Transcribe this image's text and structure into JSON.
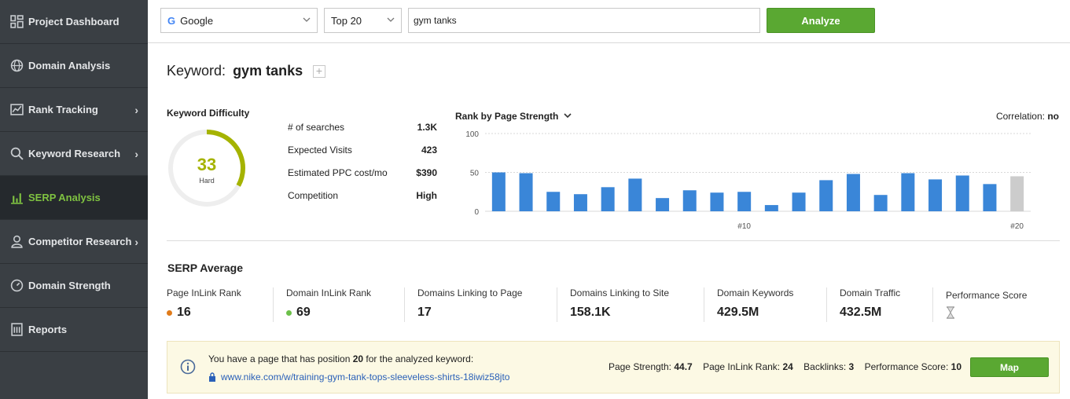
{
  "sidebar": {
    "items": [
      {
        "label": "Project Dashboard",
        "icon": "dashboard-icon"
      },
      {
        "label": "Domain Analysis",
        "icon": "globe-icon"
      },
      {
        "label": "Rank Tracking",
        "icon": "trend-icon"
      },
      {
        "label": "Keyword Research",
        "icon": "search-icon"
      },
      {
        "label": "SERP Analysis",
        "icon": "bar-chart-icon"
      },
      {
        "label": "Competitor Research",
        "icon": "user-icon"
      },
      {
        "label": "Domain Strength",
        "icon": "gauge-icon"
      },
      {
        "label": "Reports",
        "icon": "report-icon"
      }
    ],
    "active": "SERP Analysis"
  },
  "toolbar": {
    "engine": "Google",
    "depth": "Top 20",
    "query": "gym tanks",
    "analyze_label": "Analyze"
  },
  "keyword": {
    "prefix": "Keyword:",
    "value": "gym tanks",
    "add_symbol": "+"
  },
  "difficulty": {
    "label": "Keyword Difficulty",
    "score": "33",
    "score_value": 33,
    "level": "Hard",
    "color": "#a5b300"
  },
  "stats": [
    {
      "label": "# of searches",
      "value": "1.3K"
    },
    {
      "label": "Expected Visits",
      "value": "423"
    },
    {
      "label": "Estimated PPC cost/mo",
      "value": "$390"
    },
    {
      "label": "Competition",
      "value": "High"
    }
  ],
  "chart_data": {
    "type": "bar",
    "title": "Rank by Page Strength",
    "correlation_label": "Correlation:",
    "correlation_value": "no",
    "ylim": [
      0,
      100
    ],
    "yticks": [
      0,
      50,
      100
    ],
    "grid": true,
    "categories": [
      1,
      2,
      3,
      4,
      5,
      6,
      7,
      8,
      9,
      10,
      11,
      12,
      13,
      14,
      15,
      16,
      17,
      18,
      19,
      20
    ],
    "xtick_labels": {
      "10": "#10",
      "20": "#20"
    },
    "values": [
      50,
      49,
      25,
      22,
      31,
      42,
      17,
      27,
      24,
      25,
      8,
      24,
      40,
      48,
      21,
      49,
      41,
      46,
      35,
      45
    ],
    "highlight_index": 19,
    "colors": {
      "bar": "#3a86d8",
      "highlight": "#cccccc"
    }
  },
  "serp_average": {
    "title": "SERP Average",
    "metrics": [
      {
        "label": "Page InLink Rank",
        "value": "16",
        "dot": "#e07b1a"
      },
      {
        "label": "Domain InLink Rank",
        "value": "69",
        "dot": "#6cc04a"
      },
      {
        "label": "Domains Linking to Page",
        "value": "17"
      },
      {
        "label": "Domains Linking to Site",
        "value": "158.1K"
      },
      {
        "label": "Domain Keywords",
        "value": "429.5M"
      },
      {
        "label": "Domain Traffic",
        "value": "432.5M"
      },
      {
        "label": "Performance Score",
        "value": "",
        "icon": "hourglass-icon"
      }
    ]
  },
  "notice": {
    "text_before": "You have a page that has position",
    "position": "20",
    "text_after": "for the analyzed keyword:",
    "url": "www.nike.com/w/training-gym-tank-tops-sleeveless-shirts-18iwiz58jto",
    "page_strength_label": "Page Strength:",
    "page_strength": "44.7",
    "inlink_label": "Page InLink Rank:",
    "inlink": "24",
    "backlinks_label": "Backlinks:",
    "backlinks": "3",
    "perf_label": "Performance Score:",
    "perf": "10",
    "map_label": "Map"
  }
}
